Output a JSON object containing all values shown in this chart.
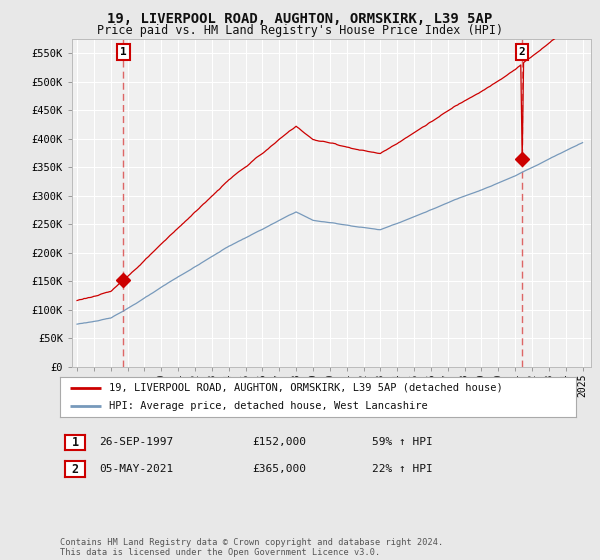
{
  "title": "19, LIVERPOOL ROAD, AUGHTON, ORMSKIRK, L39 5AP",
  "subtitle": "Price paid vs. HM Land Registry's House Price Index (HPI)",
  "ylim": [
    0,
    575000
  ],
  "yticks": [
    0,
    50000,
    100000,
    150000,
    200000,
    250000,
    300000,
    350000,
    400000,
    450000,
    500000,
    550000
  ],
  "ytick_labels": [
    "£0",
    "£50K",
    "£100K",
    "£150K",
    "£200K",
    "£250K",
    "£300K",
    "£350K",
    "£400K",
    "£450K",
    "£500K",
    "£550K"
  ],
  "background_color": "#e8e8e8",
  "plot_background": "#f0f0f0",
  "grid_color": "#ffffff",
  "sale1_price": 152000,
  "sale1_date_str": "26-SEP-1997",
  "sale1_hpi_pct": "59% ↑ HPI",
  "sale2_price": 365000,
  "sale2_date_str": "05-MAY-2021",
  "sale2_hpi_pct": "22% ↑ HPI",
  "legend_line1": "19, LIVERPOOL ROAD, AUGHTON, ORMSKIRK, L39 5AP (detached house)",
  "legend_line2": "HPI: Average price, detached house, West Lancashire",
  "footnote": "Contains HM Land Registry data © Crown copyright and database right 2024.\nThis data is licensed under the Open Government Licence v3.0.",
  "line_color_red": "#cc0000",
  "line_color_blue": "#7799bb",
  "marker_color": "#cc0000",
  "vline_color": "#dd6666",
  "sale_box_color": "#cc0000"
}
